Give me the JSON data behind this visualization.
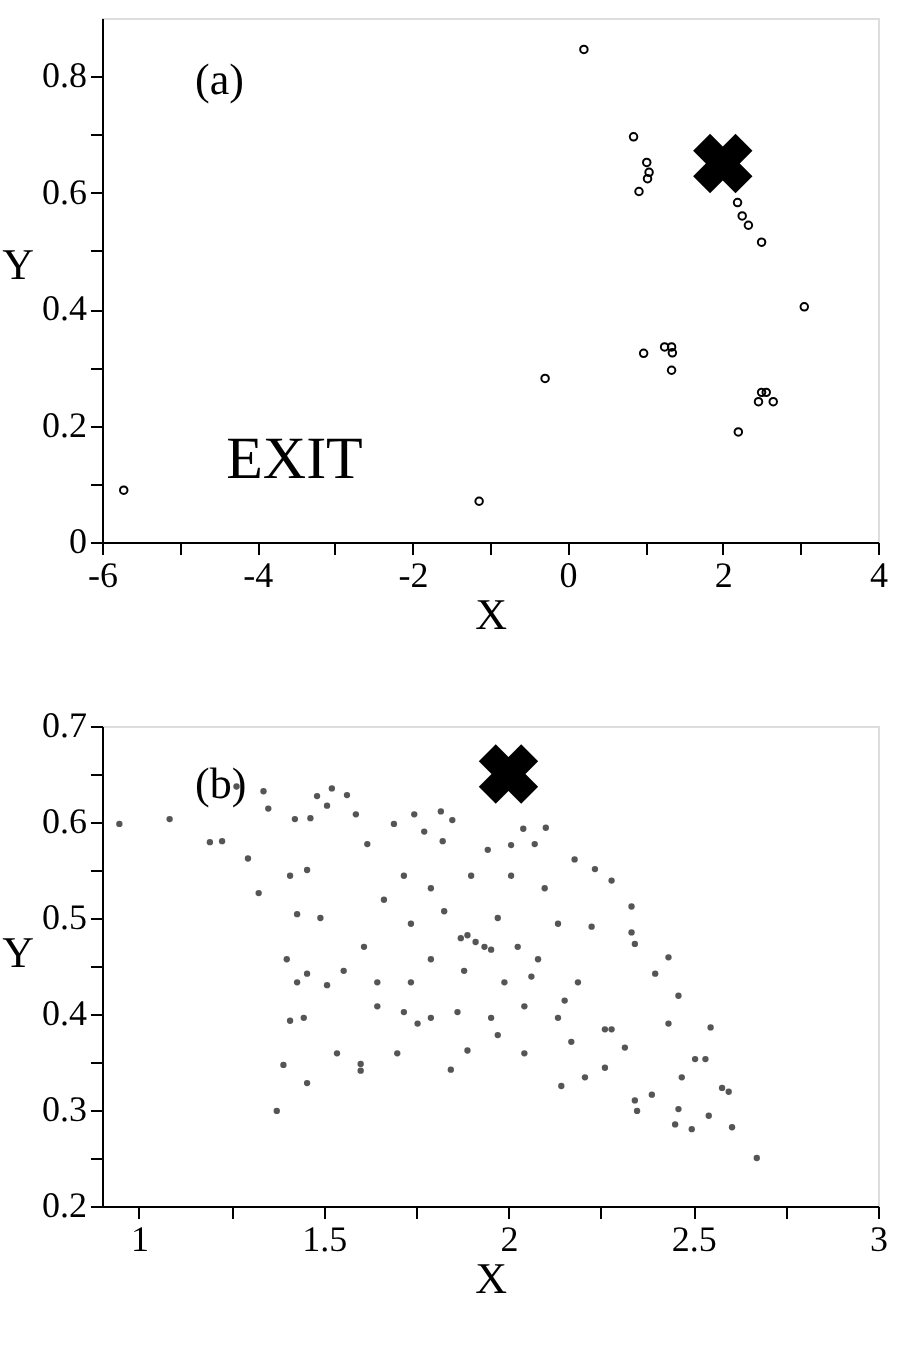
{
  "chart_data": [
    {
      "type": "scatter",
      "xlabel": "X",
      "ylabel": "Y",
      "annotations": [
        "(a)",
        "EXIT"
      ],
      "grid": false,
      "xlim": [
        -6,
        4
      ],
      "xticks": [
        -6,
        {
          "value": -5,
          "label": null
        },
        -4,
        {
          "value": -3,
          "label": null
        },
        -2,
        {
          "value": -1,
          "label": null
        },
        0,
        {
          "value": 1,
          "label": null
        },
        2,
        {
          "value": 3,
          "label": null
        },
        4
      ],
      "ylim": [
        0,
        0.9
      ],
      "yticks": [
        0,
        {
          "value": 0.1,
          "label": null
        },
        0.2,
        {
          "value": 0.3,
          "label": null
        },
        0.4,
        {
          "value": 0.5,
          "label": null
        },
        0.6,
        {
          "value": 0.7,
          "label": null
        },
        0.8
      ],
      "series": [
        {
          "marker": "circle",
          "color": "#000000",
          "x": [
            -5.72,
            -1.14,
            -0.29,
            0.21,
            0.85,
            1.02,
            1.05,
            1.03,
            0.92,
            0.98,
            1.25,
            1.34,
            1.35,
            1.34,
            2.19,
            2.25,
            2.33,
            2.5,
            3.05,
            2.2,
            2.46,
            2.5,
            2.56,
            2.65
          ],
          "values": [
            0.089,
            0.07,
            0.281,
            0.846,
            0.696,
            0.652,
            0.635,
            0.624,
            0.602,
            0.324,
            0.335,
            0.335,
            0.325,
            0.295,
            0.583,
            0.56,
            0.544,
            0.515,
            0.404,
            0.189,
            0.241,
            0.257,
            0.257,
            0.241
          ]
        },
        {
          "marker": "cross",
          "color": "#000000",
          "x": [
            2
          ],
          "values": [
            0.65
          ]
        }
      ]
    },
    {
      "type": "scatter",
      "xlabel": "X",
      "ylabel": "Y",
      "annotations": [
        "(b)"
      ],
      "grid": false,
      "xlim": [
        0.9,
        3
      ],
      "xticks": [
        1,
        {
          "value": 1.25,
          "label": null
        },
        1.5,
        {
          "value": 1.75,
          "label": null
        },
        2,
        {
          "value": 2.25,
          "label": null
        },
        2.5,
        {
          "value": 2.75,
          "label": null
        },
        3
      ],
      "ylim": [
        0.2,
        0.7
      ],
      "yticks": [
        0.2,
        {
          "value": 0.25,
          "label": null
        },
        0.3,
        {
          "value": 0.35,
          "label": null
        },
        0.4,
        {
          "value": 0.45,
          "label": null
        },
        0.5,
        {
          "value": 0.55,
          "label": null
        },
        0.6,
        {
          "value": 0.65,
          "label": null
        },
        0.7
      ],
      "series": [
        {
          "marker": "circle",
          "color": "#555555",
          "x": [
            1.083,
            0.947,
            1.192,
            1.225,
            1.295,
            1.324,
            1.264,
            1.337,
            1.482,
            1.522,
            1.563,
            1.35,
            1.422,
            1.464,
            1.509,
            1.618,
            1.587,
            1.69,
            1.745,
            1.817,
            1.848,
            1.772,
            1.822,
            1.944,
            2.007,
            2.04,
            2.101,
            2.071,
            2.179,
            2.234,
            2.279,
            2.333,
            2.225,
            2.333,
            2.342,
            2.433,
            2.397,
            2.46,
            2.433,
            2.547,
            2.505,
            2.533,
            2.578,
            2.596,
            2.469,
            2.388,
            2.342,
            2.348,
            2.46,
            2.451,
            2.496,
            2.542,
            2.605,
            2.672,
            2.143,
            2.207,
            2.261,
            2.315,
            2.279,
            2.17,
            1.971,
            2.043,
            1.889,
            1.844,
            1.754,
            1.699,
            1.6,
            1.6,
            1.536,
            1.455,
            1.391,
            1.409,
            1.446,
            1.373,
            1.4,
            1.455,
            1.509,
            1.554,
            1.428,
            1.409,
            1.455,
            1.491,
            1.428,
            1.645,
            1.717,
            1.79,
            1.862,
            1.953,
            2.043,
            2.152,
            2.188,
            2.134,
            2.261,
            2.062,
            1.989,
            1.736,
            1.645,
            1.609,
            1.663,
            1.717,
            1.79,
            1.899,
            2.007,
            2.098,
            2.134,
            2.08,
            1.79,
            1.736,
            1.826,
            1.971,
            2.025,
            1.88,
            1.911,
            1.889,
            1.935,
            1.871,
            1.953
          ],
          "values": [
            0.603,
            0.598,
            0.579,
            0.58,
            0.562,
            0.526,
            0.637,
            0.632,
            0.627,
            0.635,
            0.628,
            0.614,
            0.603,
            0.604,
            0.617,
            0.577,
            0.608,
            0.598,
            0.608,
            0.611,
            0.602,
            0.59,
            0.58,
            0.571,
            0.576,
            0.593,
            0.594,
            0.577,
            0.561,
            0.551,
            0.539,
            0.512,
            0.491,
            0.485,
            0.473,
            0.459,
            0.442,
            0.419,
            0.39,
            0.386,
            0.353,
            0.353,
            0.323,
            0.319,
            0.334,
            0.316,
            0.31,
            0.299,
            0.301,
            0.285,
            0.28,
            0.294,
            0.282,
            0.25,
            0.325,
            0.334,
            0.344,
            0.365,
            0.384,
            0.371,
            0.378,
            0.359,
            0.362,
            0.342,
            0.39,
            0.359,
            0.341,
            0.348,
            0.359,
            0.328,
            0.347,
            0.393,
            0.396,
            0.299,
            0.457,
            0.442,
            0.43,
            0.445,
            0.504,
            0.544,
            0.55,
            0.5,
            0.433,
            0.408,
            0.402,
            0.396,
            0.402,
            0.396,
            0.408,
            0.414,
            0.433,
            0.396,
            0.384,
            0.439,
            0.433,
            0.433,
            0.433,
            0.47,
            0.519,
            0.544,
            0.531,
            0.544,
            0.544,
            0.531,
            0.494,
            0.457,
            0.457,
            0.494,
            0.507,
            0.5,
            0.47,
            0.445,
            0.475,
            0.482,
            0.47,
            0.479,
            0.467
          ]
        },
        {
          "marker": "cross",
          "color": "#000000",
          "x": [
            2
          ],
          "values": [
            0.65
          ]
        }
      ]
    }
  ]
}
